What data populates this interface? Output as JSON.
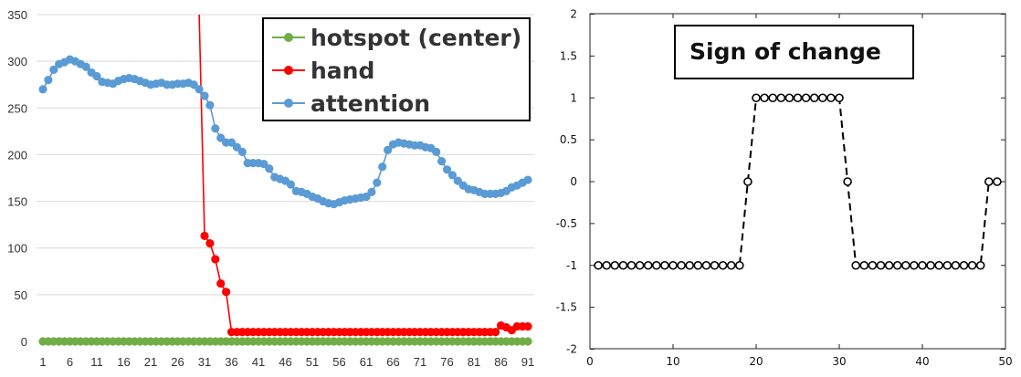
{
  "chart_data": [
    {
      "type": "line",
      "x_ticks": [
        "1",
        "6",
        "11",
        "16",
        "21",
        "26",
        "31",
        "36",
        "41",
        "46",
        "51",
        "56",
        "61",
        "66",
        "71",
        "76",
        "81",
        "86",
        "91"
      ],
      "ylim": [
        0,
        350
      ],
      "y_ticks": [
        "0",
        "50",
        "100",
        "150",
        "200",
        "250",
        "300",
        "350"
      ],
      "grid": true,
      "legend_placement": "top-right",
      "series": [
        {
          "name": "hotspot (center)",
          "color": "#70ad47",
          "x": [
            1,
            2,
            3,
            4,
            5,
            6,
            7,
            8,
            9,
            10,
            11,
            12,
            13,
            14,
            15,
            16,
            17,
            18,
            19,
            20,
            21,
            22,
            23,
            24,
            25,
            26,
            27,
            28,
            29,
            30,
            31,
            32,
            33,
            34,
            35,
            36,
            37,
            38,
            39,
            40,
            41,
            42,
            43,
            44,
            45,
            46,
            47,
            48,
            49,
            50,
            51,
            52,
            53,
            54,
            55,
            56,
            57,
            58,
            59,
            60,
            61,
            62,
            63,
            64,
            65,
            66,
            67,
            68,
            69,
            70,
            71,
            72,
            73,
            74,
            75,
            76,
            77,
            78,
            79,
            80,
            81,
            82,
            83,
            84,
            85,
            86,
            87,
            88,
            89,
            90,
            91
          ],
          "values": [
            0,
            0,
            0,
            0,
            0,
            0,
            0,
            0,
            0,
            0,
            0,
            0,
            0,
            0,
            0,
            0,
            0,
            0,
            0,
            0,
            0,
            0,
            0,
            0,
            0,
            0,
            0,
            0,
            0,
            0,
            0,
            0,
            0,
            0,
            0,
            0,
            0,
            0,
            0,
            0,
            0,
            0,
            0,
            0,
            0,
            0,
            0,
            0,
            0,
            0,
            0,
            0,
            0,
            0,
            0,
            0,
            0,
            0,
            0,
            0,
            0,
            0,
            0,
            0,
            0,
            0,
            0,
            0,
            0,
            0,
            0,
            0,
            0,
            0,
            0,
            0,
            0,
            0,
            0,
            0,
            0,
            0,
            0,
            0,
            0,
            0,
            0,
            0,
            0,
            0,
            0
          ]
        },
        {
          "name": "hand",
          "color": "#ff0000",
          "line_start": [
            30,
            350
          ],
          "x": [
            31,
            32,
            33,
            34,
            35,
            36,
            37,
            38,
            39,
            40,
            41,
            42,
            43,
            44,
            45,
            46,
            47,
            48,
            49,
            50,
            51,
            52,
            53,
            54,
            55,
            56,
            57,
            58,
            59,
            60,
            61,
            62,
            63,
            64,
            65,
            66,
            67,
            68,
            69,
            70,
            71,
            72,
            73,
            74,
            75,
            76,
            77,
            78,
            79,
            80,
            81,
            82,
            83,
            84,
            85,
            86,
            87,
            88,
            89,
            90,
            91
          ],
          "values": [
            113,
            105,
            88,
            62,
            53,
            10,
            10,
            10,
            10,
            10,
            10,
            10,
            10,
            10,
            10,
            10,
            10,
            10,
            10,
            10,
            10,
            10,
            10,
            10,
            10,
            10,
            10,
            10,
            10,
            10,
            10,
            10,
            10,
            10,
            10,
            10,
            10,
            10,
            10,
            10,
            10,
            10,
            10,
            10,
            10,
            10,
            10,
            10,
            10,
            10,
            10,
            10,
            10,
            10,
            10,
            17,
            15,
            12,
            16,
            16,
            16
          ]
        },
        {
          "name": "attention",
          "color": "#5b9bd5",
          "x": [
            1,
            2,
            3,
            4,
            5,
            6,
            7,
            8,
            9,
            10,
            11,
            12,
            13,
            14,
            15,
            16,
            17,
            18,
            19,
            20,
            21,
            22,
            23,
            24,
            25,
            26,
            27,
            28,
            29,
            30,
            31,
            32,
            33,
            34,
            35,
            36,
            37,
            38,
            39,
            40,
            41,
            42,
            43,
            44,
            45,
            46,
            47,
            48,
            49,
            50,
            51,
            52,
            53,
            54,
            55,
            56,
            57,
            58,
            59,
            60,
            61,
            62,
            63,
            64,
            65,
            66,
            67,
            68,
            69,
            70,
            71,
            72,
            73,
            74,
            75,
            76,
            77,
            78,
            79,
            80,
            81,
            82,
            83,
            84,
            85,
            86,
            87,
            88,
            89,
            90,
            91
          ],
          "values": [
            270,
            280,
            291,
            297,
            299,
            302,
            300,
            297,
            294,
            288,
            284,
            278,
            277,
            276,
            279,
            281,
            282,
            281,
            279,
            277,
            275,
            276,
            277,
            275,
            275,
            276,
            276,
            277,
            275,
            270,
            263,
            253,
            228,
            218,
            213,
            213,
            208,
            203,
            191,
            191,
            191,
            190,
            185,
            176,
            174,
            172,
            168,
            161,
            160,
            158,
            155,
            153,
            150,
            148,
            147,
            149,
            151,
            152,
            153,
            154,
            155,
            160,
            170,
            187,
            205,
            211,
            213,
            212,
            211,
            210,
            210,
            208,
            207,
            203,
            193,
            184,
            178,
            172,
            167,
            163,
            162,
            160,
            158,
            158,
            158,
            159,
            161,
            165,
            167,
            170,
            173
          ]
        }
      ]
    },
    {
      "type": "line",
      "xlim": [
        0,
        50
      ],
      "ylim": [
        -2,
        2
      ],
      "x_ticks": [
        "0",
        "10",
        "20",
        "30",
        "40",
        "50"
      ],
      "y_ticks": [
        "-2",
        "-1.5",
        "-1",
        "-0.5",
        "0",
        "0.5",
        "1",
        "1.5",
        "2"
      ],
      "annotation": "Sign of change",
      "series": [
        {
          "style": "dashed line with open circle markers",
          "color": "#000000",
          "x": [
            1,
            2,
            3,
            4,
            5,
            6,
            7,
            8,
            9,
            10,
            11,
            12,
            13,
            14,
            15,
            16,
            17,
            18,
            19,
            20,
            21,
            22,
            23,
            24,
            25,
            26,
            27,
            28,
            29,
            30,
            31,
            32,
            33,
            34,
            35,
            36,
            37,
            38,
            39,
            40,
            41,
            42,
            43,
            44,
            45,
            46,
            47,
            48,
            49
          ],
          "values": [
            -1,
            -1,
            -1,
            -1,
            -1,
            -1,
            -1,
            -1,
            -1,
            -1,
            -1,
            -1,
            -1,
            -1,
            -1,
            -1,
            -1,
            -1,
            0,
            1,
            1,
            1,
            1,
            1,
            1,
            1,
            1,
            1,
            1,
            1,
            0,
            -1,
            -1,
            -1,
            -1,
            -1,
            -1,
            -1,
            -1,
            -1,
            -1,
            -1,
            -1,
            -1,
            -1,
            -1,
            -1,
            0,
            0
          ]
        }
      ]
    }
  ]
}
